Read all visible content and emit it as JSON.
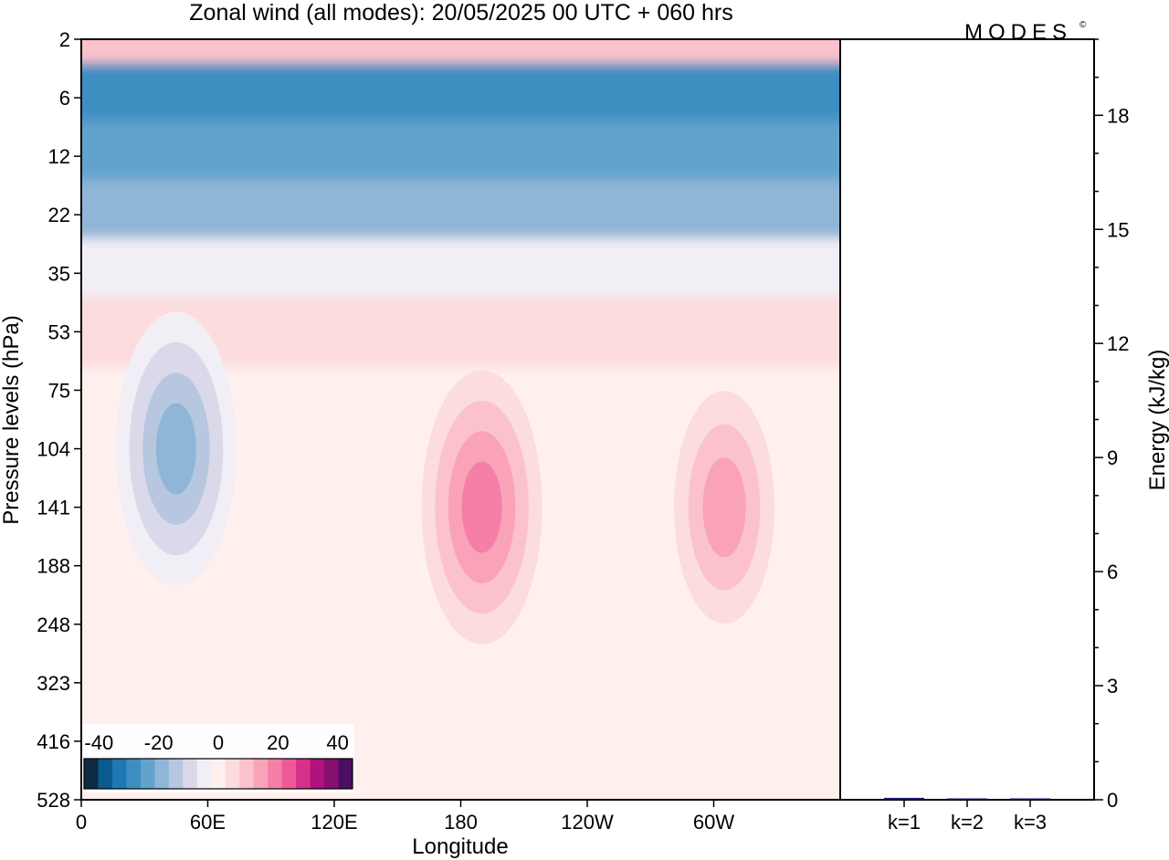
{
  "header": {
    "title": "Zonal wind (all modes):  20/05/2025  00 UTC  + 060 hrs",
    "logo": "MODES",
    "logo_mark": "©"
  },
  "chart_data": [
    {
      "type": "heatmap",
      "title": "Zonal wind (all modes):  20/05/2025  00 UTC  + 060 hrs",
      "xlabel": "Longitude",
      "ylabel": "Pressure levels (hPa)",
      "x_ticks": [
        "0",
        "60E",
        "120E",
        "180",
        "120W",
        "60W"
      ],
      "x_tick_values": [
        0,
        60,
        120,
        180,
        240,
        300
      ],
      "xlim": [
        0,
        360
      ],
      "y_ticks": [
        "2",
        "6",
        "12",
        "22",
        "35",
        "53",
        "75",
        "104",
        "141",
        "188",
        "248",
        "323",
        "416",
        "528"
      ],
      "y_scale": "categorical-levels",
      "colorbar": {
        "tick_labels": [
          "-40",
          "-20",
          "0",
          "20",
          "40"
        ],
        "tick_values": [
          -40,
          -20,
          0,
          20,
          40
        ],
        "levels": [
          -45,
          -40,
          -35,
          -30,
          -25,
          -20,
          -15,
          -10,
          -5,
          0,
          5,
          10,
          15,
          20,
          25,
          30,
          35,
          40,
          45
        ],
        "colors": [
          "#0d2b45",
          "#0a5a8f",
          "#1f78b4",
          "#3d8fc2",
          "#62a3cc",
          "#8fb6d6",
          "#b7c7e0",
          "#dad9ea",
          "#f2eef5",
          "#fff0ee",
          "#fcdcdc",
          "#fbc2cc",
          "#f9a2b8",
          "#f57fa6",
          "#ee5a99",
          "#d6308b",
          "#b0127e",
          "#86106f",
          "#4a0f60"
        ]
      },
      "regions": [
        {
          "level": "2",
          "value": 12
        },
        {
          "level": "6",
          "value": -30
        },
        {
          "level": "12",
          "value": -25
        },
        {
          "level": "22",
          "value": -18
        },
        {
          "level": "35",
          "value": -5
        },
        {
          "level": "53",
          "value": 5
        },
        {
          "level": "104",
          "lon": 45,
          "value": -20
        },
        {
          "level": "141",
          "lon": 190,
          "value": 20
        },
        {
          "level": "141",
          "lon": 305,
          "value": 15
        },
        {
          "level": "323",
          "value": 0
        }
      ]
    },
    {
      "type": "bar",
      "categories": [
        "k=1",
        "k=2",
        "k=3"
      ],
      "values": [
        0.05,
        0.03,
        0.02
      ],
      "ylabel": "Energy (kJ/kg)",
      "ylim": [
        0,
        20
      ],
      "y_ticks": [
        "0",
        "3",
        "6",
        "9",
        "12",
        "15",
        "18"
      ],
      "y_tick_values": [
        0,
        3,
        6,
        9,
        12,
        15,
        18
      ]
    }
  ]
}
